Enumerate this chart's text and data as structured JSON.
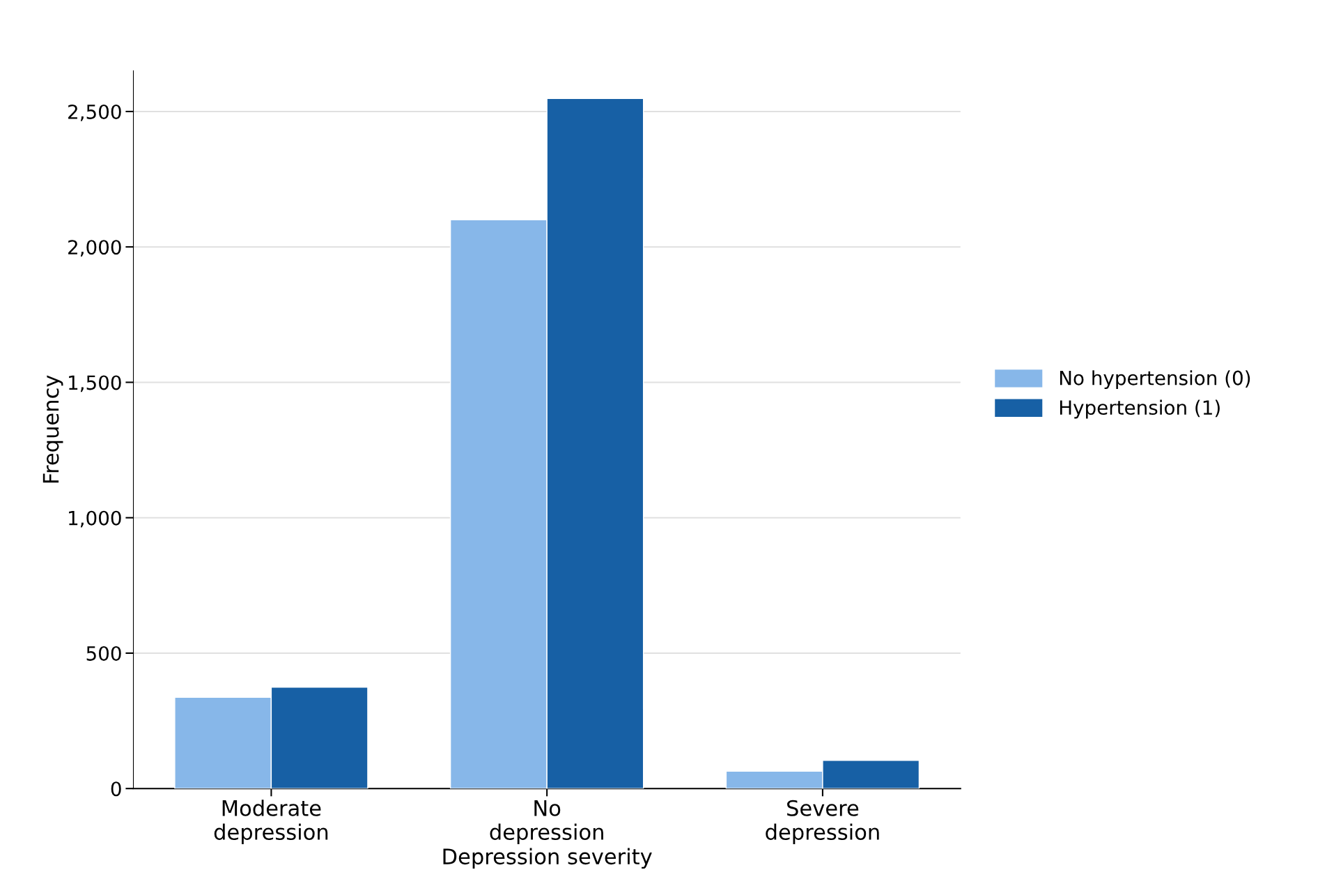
{
  "chart_data": {
    "type": "bar",
    "xlabel": "Depression severity",
    "ylabel": "Frequency",
    "categories": [
      "Moderate\ndepression",
      "No\ndepression",
      "Severe\ndepression"
    ],
    "series": [
      {
        "name": "No hypertension (0)",
        "color": "#87b7e9",
        "values": [
          337,
          2100,
          64
        ]
      },
      {
        "name": "Hypertension (1)",
        "color": "#1760a5",
        "values": [
          374,
          2548,
          104
        ]
      }
    ],
    "ylim": [
      0,
      2650
    ],
    "yticks": [
      {
        "value": 0,
        "label": "0"
      },
      {
        "value": 500,
        "label": "500"
      },
      {
        "value": 1000,
        "label": "1,000"
      },
      {
        "value": 1500,
        "label": "1,500"
      },
      {
        "value": 2000,
        "label": "2,000"
      },
      {
        "value": 2500,
        "label": "2,500"
      }
    ],
    "grid": "y",
    "legend": "right"
  }
}
